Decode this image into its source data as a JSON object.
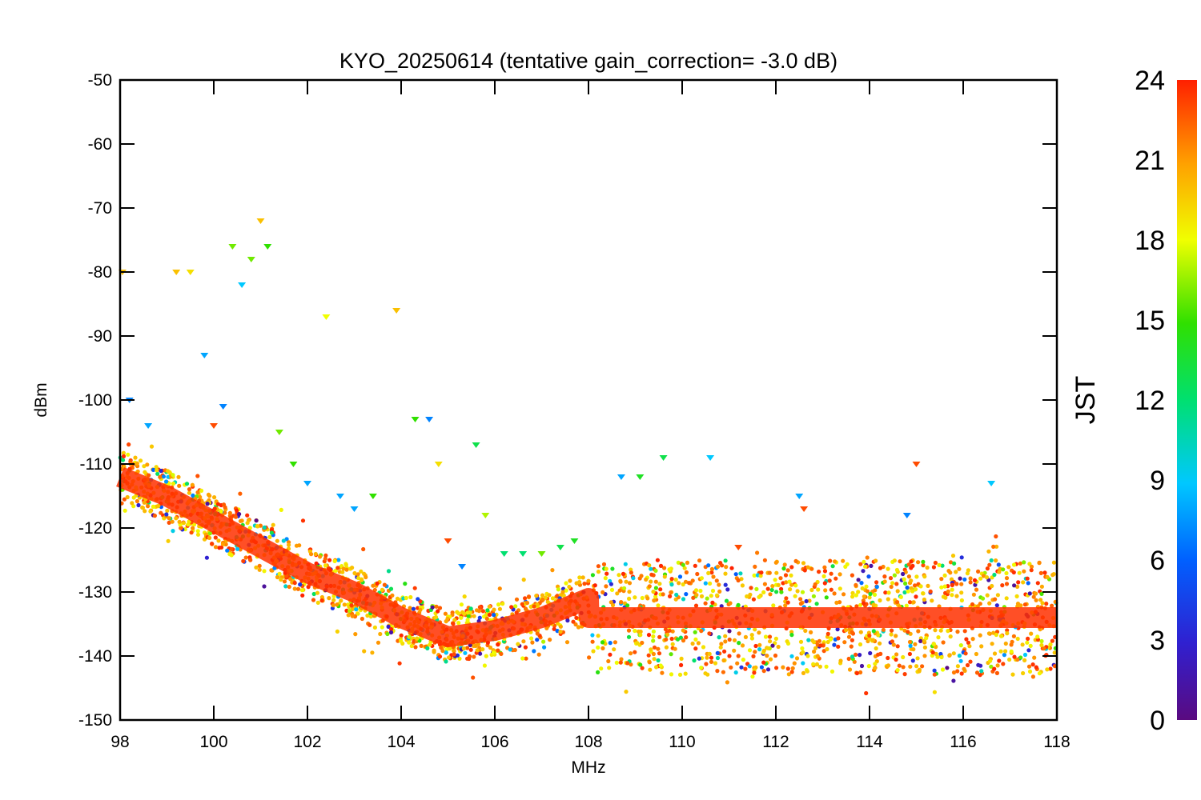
{
  "chart_data": {
    "type": "scatter",
    "title": "KYO_20250614 (tentative gain_correction= -3.0 dB)",
    "xlabel": "MHz",
    "ylabel": "dBm",
    "xlim": [
      98,
      118
    ],
    "ylim": [
      -150,
      -50
    ],
    "x_ticks": [
      "98",
      "100",
      "102",
      "104",
      "106",
      "108",
      "110",
      "112",
      "114",
      "116",
      "118"
    ],
    "y_ticks": [
      "-50",
      "-60",
      "-70",
      "-80",
      "-90",
      "-100",
      "-110",
      "-120",
      "-130",
      "-140",
      "-150"
    ],
    "colorbar": {
      "label": "JST",
      "range": [
        0,
        24
      ],
      "ticks": [
        "0",
        "3",
        "6",
        "9",
        "12",
        "15",
        "18",
        "21",
        "24"
      ],
      "colormap": "rainbow"
    },
    "noise_floor": [
      {
        "x": 98.0,
        "y": -112
      },
      {
        "x": 99.0,
        "y": -115
      },
      {
        "x": 100.0,
        "y": -119
      },
      {
        "x": 101.0,
        "y": -123
      },
      {
        "x": 102.0,
        "y": -127
      },
      {
        "x": 103.0,
        "y": -130
      },
      {
        "x": 104.0,
        "y": -134
      },
      {
        "x": 105.0,
        "y": -137
      },
      {
        "x": 106.0,
        "y": -136
      },
      {
        "x": 107.0,
        "y": -134
      },
      {
        "x": 108.0,
        "y": -131
      },
      {
        "x": 108.01,
        "y": -134
      },
      {
        "x": 118.0,
        "y": -134
      }
    ],
    "peaks": [
      {
        "x": 98.05,
        "y": -80,
        "jst": 20
      },
      {
        "x": 98.2,
        "y": -100,
        "jst": 7
      },
      {
        "x": 98.6,
        "y": -104,
        "jst": 8
      },
      {
        "x": 99.2,
        "y": -80,
        "jst": 20
      },
      {
        "x": 99.5,
        "y": -80,
        "jst": 19
      },
      {
        "x": 99.8,
        "y": -93,
        "jst": 8
      },
      {
        "x": 100.0,
        "y": -104,
        "jst": 23
      },
      {
        "x": 100.2,
        "y": -101,
        "jst": 7
      },
      {
        "x": 100.4,
        "y": -76,
        "jst": 16
      },
      {
        "x": 100.6,
        "y": -82,
        "jst": 9
      },
      {
        "x": 100.8,
        "y": -78,
        "jst": 16
      },
      {
        "x": 101.0,
        "y": -72,
        "jst": 20
      },
      {
        "x": 101.15,
        "y": -76,
        "jst": 15
      },
      {
        "x": 101.4,
        "y": -105,
        "jst": 16
      },
      {
        "x": 101.7,
        "y": -110,
        "jst": 15
      },
      {
        "x": 102.0,
        "y": -113,
        "jst": 8
      },
      {
        "x": 102.4,
        "y": -87,
        "jst": 18
      },
      {
        "x": 102.7,
        "y": -115,
        "jst": 8
      },
      {
        "x": 103.0,
        "y": -117,
        "jst": 8
      },
      {
        "x": 103.4,
        "y": -115,
        "jst": 15
      },
      {
        "x": 103.9,
        "y": -86,
        "jst": 20
      },
      {
        "x": 104.3,
        "y": -103,
        "jst": 15
      },
      {
        "x": 104.6,
        "y": -103,
        "jst": 7
      },
      {
        "x": 104.8,
        "y": -110,
        "jst": 19
      },
      {
        "x": 105.0,
        "y": -122,
        "jst": 23
      },
      {
        "x": 105.3,
        "y": -126,
        "jst": 7
      },
      {
        "x": 105.6,
        "y": -107,
        "jst": 13
      },
      {
        "x": 105.8,
        "y": -118,
        "jst": 17
      },
      {
        "x": 106.2,
        "y": -124,
        "jst": 12
      },
      {
        "x": 106.6,
        "y": -124,
        "jst": 12
      },
      {
        "x": 107.0,
        "y": -124,
        "jst": 16
      },
      {
        "x": 107.4,
        "y": -123,
        "jst": 13
      },
      {
        "x": 107.7,
        "y": -122,
        "jst": 14
      },
      {
        "x": 108.7,
        "y": -112,
        "jst": 8
      },
      {
        "x": 109.1,
        "y": -112,
        "jst": 14
      },
      {
        "x": 109.6,
        "y": -109,
        "jst": 13
      },
      {
        "x": 110.6,
        "y": -109,
        "jst": 9
      },
      {
        "x": 111.2,
        "y": -123,
        "jst": 23
      },
      {
        "x": 112.5,
        "y": -115,
        "jst": 8
      },
      {
        "x": 112.6,
        "y": -117,
        "jst": 23
      },
      {
        "x": 114.8,
        "y": -118,
        "jst": 7
      },
      {
        "x": 115.0,
        "y": -110,
        "jst": 23
      },
      {
        "x": 116.6,
        "y": -113,
        "jst": 9
      }
    ]
  }
}
